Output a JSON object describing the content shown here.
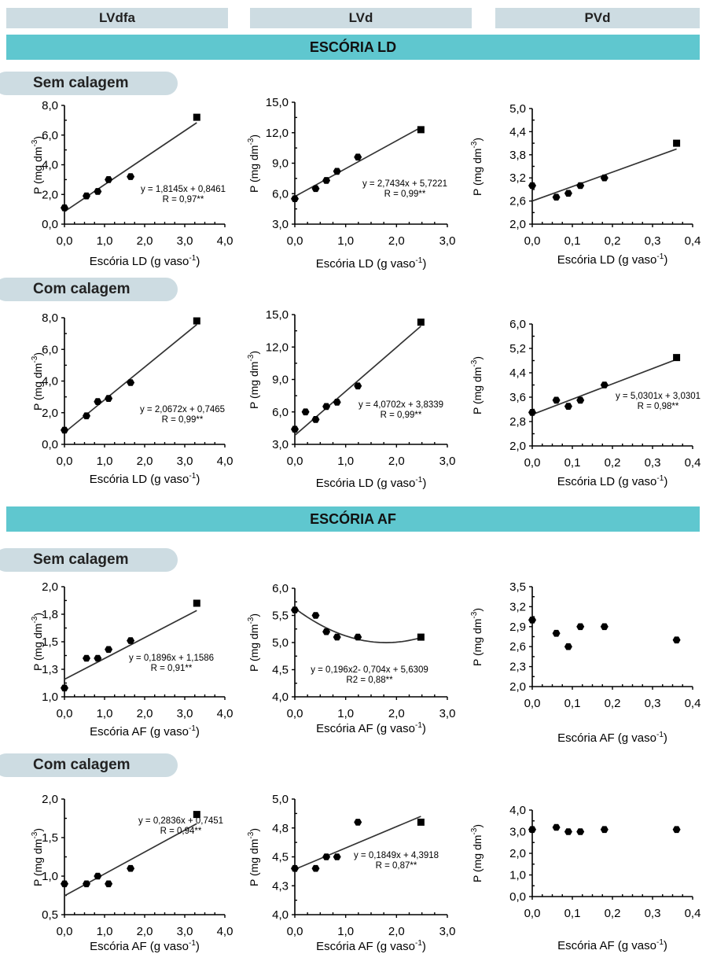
{
  "headers": {
    "col1": "LVdfa",
    "col2": "LVd",
    "col3": "PVd"
  },
  "sections": {
    "ld": "ESCÓRIA LD",
    "af": "ESCÓRIA AF"
  },
  "pills": {
    "ld_sem": "Sem calagem",
    "ld_com": "Com calagem",
    "af_sem": "Sem calagem",
    "af_com": "Com calagem"
  },
  "chart_data": [
    {
      "id": "ld_sem_lvdfa",
      "type": "scatter",
      "ylabel": "P (mg dm-3)",
      "xlabel": "Escória LD (g vaso-1)",
      "xlim": [
        0,
        4
      ],
      "xticks": [
        "0,0",
        "1,0",
        "2,0",
        "3,0",
        "4,0"
      ],
      "ylim": [
        0,
        8
      ],
      "yticks": [
        "0,0",
        "2,0",
        "4,0",
        "6,0",
        "8,0"
      ],
      "x": [
        0,
        0.55,
        0.83,
        1.1,
        1.65,
        3.3
      ],
      "y": [
        1.1,
        1.9,
        2.2,
        3.0,
        3.2,
        7.2
      ],
      "fit": {
        "kind": "linear",
        "a": 1.8145,
        "b": 0.8461
      },
      "annotation": [
        "y = 1,8145x + 0,8461",
        "R = 0,97**"
      ]
    },
    {
      "id": "ld_sem_lvd",
      "type": "scatter",
      "ylabel": "P (mg dm-3)",
      "xlabel": "Escória LD (g vaso-1)",
      "xlim": [
        0,
        3
      ],
      "xticks": [
        "0,0",
        "1,0",
        "2,0",
        "3,0"
      ],
      "ylim": [
        3,
        15
      ],
      "yticks": [
        "3,0",
        "6,0",
        "9,0",
        "12,0",
        "15,0"
      ],
      "x": [
        0,
        0.41,
        0.62,
        0.83,
        1.24,
        2.48
      ],
      "y": [
        5.5,
        6.5,
        7.3,
        8.2,
        9.6,
        12.3
      ],
      "fit": {
        "kind": "linear",
        "a": 2.7434,
        "b": 5.7221
      },
      "annotation": [
        "y = 2,7434x + 5,7221",
        "R = 0,99**"
      ]
    },
    {
      "id": "ld_sem_pvd",
      "type": "scatter",
      "ylabel": "P (mg dm-3)",
      "xlabel": "Escória LD (g vaso-1)",
      "xlim": [
        0,
        0.4
      ],
      "xticks": [
        "0,0",
        "0,1",
        "0,2",
        "0,3",
        "0,4"
      ],
      "ylim": [
        2,
        5
      ],
      "yticks": [
        "2,0",
        "2,6",
        "3,2",
        "3,8",
        "4,4",
        "5,0"
      ],
      "x": [
        0,
        0.06,
        0.09,
        0.12,
        0.18,
        0.36
      ],
      "y": [
        3.0,
        2.7,
        2.8,
        3.0,
        3.2,
        4.1
      ],
      "fit": {
        "kind": "line2",
        "x0": 0,
        "y0": 2.6,
        "x1": 0.36,
        "y1": 3.95
      },
      "annotation": []
    },
    {
      "id": "ld_com_lvdfa",
      "type": "scatter",
      "ylabel": "P (mg dm-3)",
      "xlabel": "Escória LD (g vaso-1)",
      "xlim": [
        0,
        4
      ],
      "xticks": [
        "0,0",
        "1,0",
        "2,0",
        "3,0",
        "4,0"
      ],
      "ylim": [
        0,
        8
      ],
      "yticks": [
        "0,0",
        "2,0",
        "4,0",
        "6,0",
        "8,0"
      ],
      "x": [
        0,
        0.55,
        0.83,
        1.1,
        1.65,
        3.3
      ],
      "y": [
        0.9,
        1.8,
        2.7,
        2.9,
        3.9,
        7.8
      ],
      "fit": {
        "kind": "linear",
        "a": 2.0672,
        "b": 0.7465
      },
      "annotation": [
        "y = 2,0672x + 0,7465",
        "R = 0,99**"
      ]
    },
    {
      "id": "ld_com_lvd",
      "type": "scatter",
      "ylabel": "P (mg dm-3)",
      "xlabel": "Escória LD (g vaso-1)",
      "xlim": [
        0,
        3
      ],
      "xticks": [
        "0,0",
        "1,0",
        "2,0",
        "3,0"
      ],
      "ylim": [
        3,
        15
      ],
      "yticks": [
        "3,0",
        "6,0",
        "9,0",
        "12,0",
        "15,0"
      ],
      "x": [
        0,
        0.21,
        0.41,
        0.62,
        0.83,
        1.24,
        2.48
      ],
      "y": [
        4.4,
        6.0,
        5.3,
        6.5,
        6.9,
        8.4,
        14.3
      ],
      "fit": {
        "kind": "linear",
        "a": 4.0702,
        "b": 3.8339
      },
      "annotation": [
        "y = 4,0702x + 3,8339",
        "R = 0,99**"
      ]
    },
    {
      "id": "ld_com_pvd",
      "type": "scatter",
      "ylabel": "P (mg dm-3)",
      "xlabel": "Escória LD (g vaso-1)",
      "xlim": [
        0,
        0.4
      ],
      "xticks": [
        "0,0",
        "0,1",
        "0,2",
        "0,3",
        "0,4"
      ],
      "ylim": [
        2,
        6
      ],
      "yticks": [
        "2,0",
        "2,8",
        "3,6",
        "4,4",
        "5,2",
        "6,0"
      ],
      "x": [
        0,
        0.06,
        0.09,
        0.12,
        0.18,
        0.36
      ],
      "y": [
        3.1,
        3.5,
        3.3,
        3.5,
        4.0,
        4.9
      ],
      "fit": {
        "kind": "linear",
        "a": 5.0301,
        "b": 3.0301
      },
      "annotation": [
        "y = 5,0301x + 3,0301",
        "R = 0,98**"
      ]
    },
    {
      "id": "af_sem_lvdfa",
      "type": "scatter",
      "ylabel": "P (mg dm-3)",
      "xlabel": "Escória AF (g vaso-1)",
      "xlim": [
        0,
        4
      ],
      "xticks": [
        "0,0",
        "1,0",
        "2,0",
        "3,0",
        "4,0"
      ],
      "ylim": [
        1,
        2
      ],
      "yticks": [
        "1,0",
        "1,3",
        "1,5",
        "1,8",
        "2,0"
      ],
      "x": [
        0,
        0.55,
        0.83,
        1.1,
        1.65,
        3.3
      ],
      "y": [
        1.08,
        1.35,
        1.35,
        1.43,
        1.51,
        1.85
      ],
      "fit": {
        "kind": "linear",
        "a": 0.1896,
        "b": 1.1586
      },
      "annotation": [
        "y = 0,1896x + 1,1586",
        "R = 0,91**"
      ]
    },
    {
      "id": "af_sem_lvd",
      "type": "scatter",
      "ylabel": "P (mg dm-3)",
      "xlabel": "Escória AF (g vaso-1)",
      "xlim": [
        0,
        3
      ],
      "xticks": [
        "0,0",
        "1,0",
        "2,0",
        "3,0"
      ],
      "ylim": [
        4,
        6
      ],
      "yticks": [
        "4,0",
        "4,5",
        "5,0",
        "5,5",
        "6,0"
      ],
      "x": [
        0,
        0.41,
        0.62,
        0.83,
        1.24,
        2.48
      ],
      "y": [
        5.6,
        5.5,
        5.2,
        5.1,
        5.1,
        5.1
      ],
      "fit": {
        "kind": "quadratic",
        "a": 0.196,
        "b": -0.704,
        "c": 5.6309
      },
      "annotation": [
        "y = 0,196x2- 0,704x + 5,6309",
        "R2 = 0,88**"
      ]
    },
    {
      "id": "af_sem_pvd",
      "type": "scatter",
      "ylabel": "P (mg dm-3)",
      "xlabel": "Escória AF (g vaso-1)",
      "xlim": [
        0,
        0.4
      ],
      "xticks": [
        "0,0",
        "0,1",
        "0,2",
        "0,3",
        "0,4"
      ],
      "ylim": [
        2,
        3.5
      ],
      "yticks": [
        "2,0",
        "2,3",
        "2,6",
        "2,9",
        "3,2",
        "3,5"
      ],
      "x": [
        0,
        0.06,
        0.09,
        0.12,
        0.18,
        0.36
      ],
      "y": [
        3.0,
        2.8,
        2.6,
        2.9,
        2.9,
        2.7
      ],
      "fit": null,
      "annotation": []
    },
    {
      "id": "af_com_lvdfa",
      "type": "scatter",
      "ylabel": "P (mg dm-3)",
      "xlabel": "Escória AF (g vaso-1)",
      "xlim": [
        0,
        4
      ],
      "xticks": [
        "0,0",
        "1,0",
        "2,0",
        "3,0",
        "4,0"
      ],
      "ylim": [
        0.5,
        2
      ],
      "yticks": [
        "0,5",
        "1,0",
        "1,5",
        "2,0"
      ],
      "x": [
        0,
        0.55,
        0.83,
        1.1,
        1.65,
        3.3
      ],
      "y": [
        0.9,
        0.9,
        1.0,
        0.9,
        1.1,
        1.8
      ],
      "fit": {
        "kind": "linear",
        "a": 0.2836,
        "b": 0.7451
      },
      "annotation": [
        "y = 0,2836x + 0,7451",
        "R = 0,94**"
      ]
    },
    {
      "id": "af_com_lvd",
      "type": "scatter",
      "ylabel": "P (mg dm-3)",
      "xlabel": "Escória AF (g vaso-1)",
      "xlim": [
        0,
        3
      ],
      "xticks": [
        "0,0",
        "1,0",
        "2,0",
        "3,0"
      ],
      "ylim": [
        4,
        5
      ],
      "yticks": [
        "4,0",
        "4,3",
        "4,5",
        "4,8",
        "5,0"
      ],
      "x": [
        0,
        0.41,
        0.62,
        0.83,
        1.24,
        2.48
      ],
      "y": [
        4.4,
        4.4,
        4.5,
        4.5,
        4.8,
        4.8
      ],
      "fit": {
        "kind": "linear",
        "a": 0.1849,
        "b": 4.3918
      },
      "annotation": [
        "y = 0,1849x + 4,3918",
        "R = 0,87**"
      ]
    },
    {
      "id": "af_com_pvd",
      "type": "scatter",
      "ylabel": "P (mg dm-3)",
      "xlabel": "Escória AF (g vaso-1)",
      "xlim": [
        0,
        0.4
      ],
      "xticks": [
        "0,0",
        "0,1",
        "0,2",
        "0,3",
        "0,4"
      ],
      "ylim": [
        0,
        4
      ],
      "yticks": [
        "0,0",
        "1,0",
        "2,0",
        "3,0",
        "4,0"
      ],
      "x": [
        0,
        0.06,
        0.09,
        0.12,
        0.18,
        0.36
      ],
      "y": [
        3.1,
        3.2,
        3.0,
        3.0,
        3.1,
        3.1
      ],
      "fit": null,
      "annotation": []
    }
  ]
}
